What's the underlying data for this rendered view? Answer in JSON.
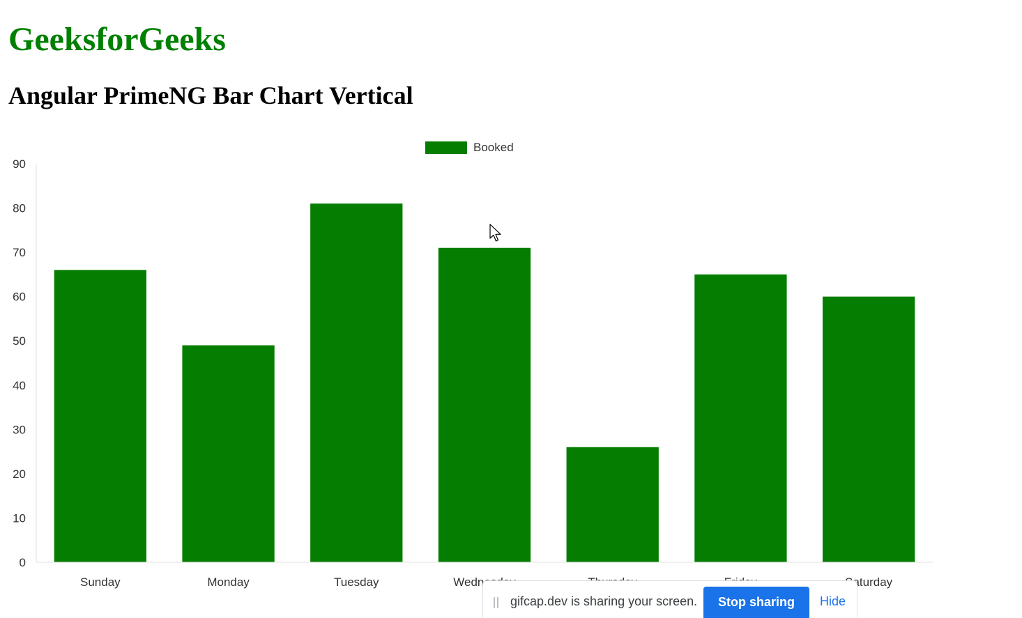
{
  "page": {
    "brand": "GeeksforGeeks",
    "subtitle": "Angular PrimeNG Bar Chart Vertical"
  },
  "chart_data": {
    "type": "bar",
    "categories": [
      "Sunday",
      "Monday",
      "Tuesday",
      "Wednesday",
      "Thursday",
      "Friday",
      "Saturday"
    ],
    "series": [
      {
        "name": "Booked",
        "values": [
          66,
          49,
          81,
          71,
          26,
          65,
          60
        ],
        "color": "#057d00"
      }
    ],
    "ylim": [
      0,
      90
    ],
    "yticks": [
      0,
      10,
      20,
      30,
      40,
      50,
      60,
      70,
      80,
      90
    ],
    "legend_position": "top-center",
    "grid": false,
    "xlabel": "",
    "ylabel": ""
  },
  "share_bar": {
    "message": "gifcap.dev is sharing your screen.",
    "stop_label": "Stop sharing",
    "hide_label": "Hide"
  },
  "icons": {
    "pointer": "mouse-pointer-icon",
    "grip": "drag-handle-icon"
  }
}
